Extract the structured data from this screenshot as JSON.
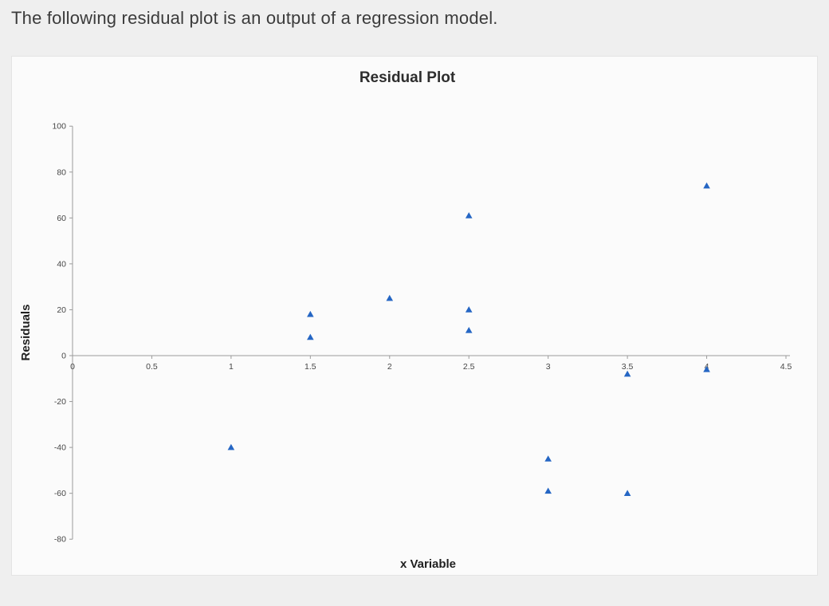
{
  "page": {
    "heading": "The following residual plot is an output of a regression model."
  },
  "chart_data": {
    "type": "scatter",
    "title": "Residual Plot",
    "xlabel": "x Variable",
    "ylabel": "Residuals",
    "xlim": [
      0,
      4.5
    ],
    "ylim": [
      -80,
      100
    ],
    "x_ticks": [
      0,
      0.5,
      1,
      1.5,
      2,
      2.5,
      3,
      3.5,
      4,
      4.5
    ],
    "y_ticks": [
      100,
      80,
      60,
      40,
      20,
      0,
      -20,
      -40,
      -60,
      -80
    ],
    "grid": false,
    "legend": "none",
    "marker": "triangle",
    "marker_color": "#2566c4",
    "axis_color": "#9b9b9b",
    "points": [
      {
        "x": 1,
        "y": -40
      },
      {
        "x": 1.5,
        "y": 18
      },
      {
        "x": 1.5,
        "y": 8
      },
      {
        "x": 2,
        "y": 25
      },
      {
        "x": 2.5,
        "y": 61
      },
      {
        "x": 2.5,
        "y": 20
      },
      {
        "x": 2.5,
        "y": 11
      },
      {
        "x": 3,
        "y": -45
      },
      {
        "x": 3,
        "y": -59
      },
      {
        "x": 3.5,
        "y": -8
      },
      {
        "x": 3.5,
        "y": -60
      },
      {
        "x": 4,
        "y": 74
      },
      {
        "x": 4,
        "y": -6
      }
    ]
  }
}
